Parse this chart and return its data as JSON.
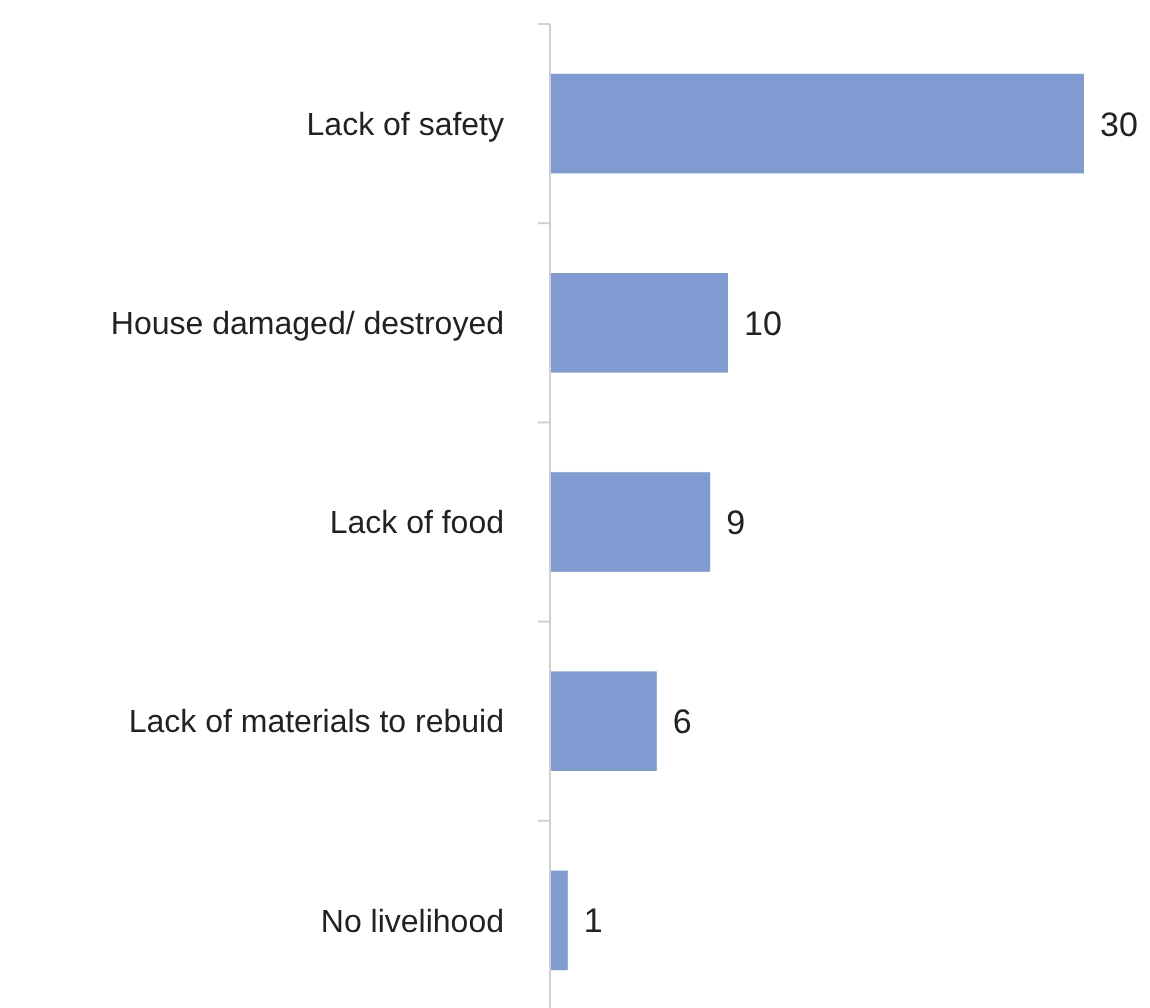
{
  "chart_data": {
    "type": "bar",
    "orientation": "horizontal",
    "categories": [
      "Lack of safety",
      "House damaged/ destroyed",
      "Lack of food",
      "Lack of materials to rebuid",
      "No livelihood"
    ],
    "values": [
      30,
      10,
      9,
      6,
      1
    ],
    "color": "#7f9bd1",
    "data_labels": true
  }
}
